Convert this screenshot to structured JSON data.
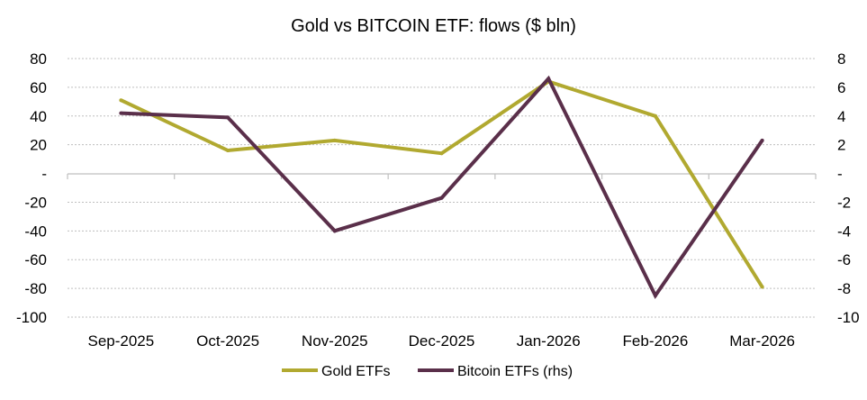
{
  "chart_data": {
    "type": "line",
    "title": "Gold vs BITCOIN ETF: flows ($ bln)",
    "categories": [
      "Sep-2025",
      "Oct-2025",
      "Nov-2025",
      "Dec-2025",
      "Jan-2026",
      "Feb-2026",
      "Mar-2026"
    ],
    "left_axis": {
      "ylim": [
        -100,
        80
      ],
      "ticks": [
        80,
        60,
        40,
        20,
        0,
        -20,
        -40,
        -60,
        -80,
        -100
      ],
      "tick_labels": [
        "80",
        "60",
        "40",
        "20",
        "-",
        "-20",
        "-40",
        "-60",
        "-80",
        "-100"
      ]
    },
    "right_axis": {
      "ylim": [
        -10,
        8
      ],
      "ticks": [
        8,
        6,
        4,
        2,
        0,
        -2,
        -4,
        -6,
        -8,
        -10
      ],
      "tick_labels": [
        "8",
        "6",
        "4",
        "2",
        "-",
        "-2",
        "-4",
        "-6",
        "-8",
        "-10"
      ]
    },
    "grid": "horizontal dotted",
    "legend_position": "bottom",
    "series": [
      {
        "name": "Gold ETFs",
        "axis": "left",
        "color": "#B1A930",
        "values": [
          51,
          16,
          23,
          14,
          64,
          40,
          -79
        ]
      },
      {
        "name": "Bitcoin ETFs (rhs)",
        "axis": "right",
        "color": "#5A2F4A",
        "values": [
          4.2,
          3.9,
          -4.0,
          -1.7,
          6.6,
          -8.5,
          2.3
        ]
      }
    ]
  }
}
